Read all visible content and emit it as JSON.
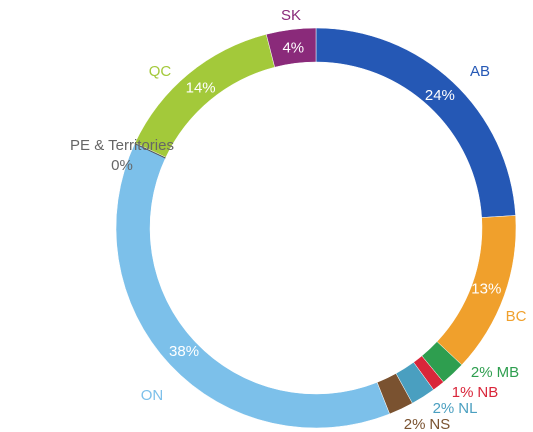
{
  "chart_data": {
    "type": "donut",
    "categories": [
      "AB",
      "BC",
      "MB",
      "NB",
      "NL",
      "NS",
      "ON",
      "PE & Territories",
      "QC",
      "SK"
    ],
    "values": [
      24,
      13,
      2,
      1,
      2,
      2,
      38,
      0,
      14,
      4
    ],
    "value_labels": [
      "24%",
      "13%",
      "2%",
      "1%",
      "2%",
      "2%",
      "38%",
      "0%",
      "14%",
      "4%"
    ],
    "colors": [
      "#2558b5",
      "#f0a02c",
      "#2e9e4f",
      "#d9263a",
      "#4a9fc0",
      "#7a5230",
      "#7cc0ea",
      "#555555",
      "#a3c93a",
      "#8a2a7a"
    ]
  }
}
